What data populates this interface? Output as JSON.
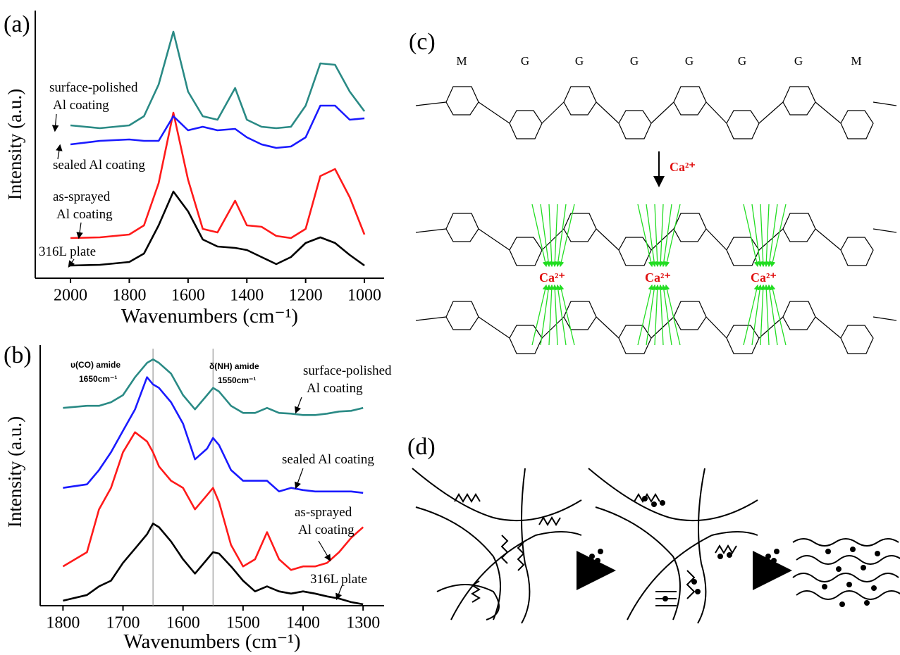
{
  "chart_data": [
    {
      "type": "line",
      "panel_label": "(a)",
      "y_label": "Intensity (a.u.)",
      "x_label": "Wavenumbers (cm⁻¹)",
      "x": [
        2000,
        1900,
        1800,
        1750,
        1700,
        1650,
        1600,
        1550,
        1500,
        1440,
        1400,
        1350,
        1300,
        1250,
        1200,
        1150,
        1100,
        1050,
        1000
      ],
      "xlim": [
        2120,
        933
      ],
      "xticks": [
        2000,
        1800,
        1600,
        1400,
        1200,
        1000
      ],
      "ylim": [
        0,
        380
      ],
      "series": [
        {
          "label_lines": [
            "316L plate"
          ],
          "color": "#000000",
          "values": [
            18,
            19,
            23,
            35,
            75,
            123,
            95,
            55,
            45,
            43,
            40,
            30,
            20,
            30,
            50,
            58,
            50,
            33,
            18
          ]
        },
        {
          "label_lines": [
            "as-sprayed",
            "Al coating"
          ],
          "color": "#ff1a1a",
          "values": [
            57,
            58,
            62,
            75,
            135,
            235,
            140,
            70,
            65,
            110,
            75,
            73,
            60,
            57,
            70,
            145,
            155,
            115,
            62
          ]
        },
        {
          "label_lines": [
            "sealed Al coating"
          ],
          "color": "#1a1aff",
          "values": [
            190,
            195,
            197,
            195,
            195,
            230,
            210,
            215,
            210,
            212,
            200,
            190,
            185,
            187,
            200,
            245,
            245,
            225,
            227
          ]
        },
        {
          "label_lines": [
            "surface-polished",
            "Al coating"
          ],
          "color": "#2a8a85",
          "values": [
            217,
            213,
            217,
            230,
            275,
            350,
            265,
            230,
            225,
            270,
            225,
            215,
            213,
            215,
            245,
            305,
            303,
            265,
            237
          ]
        }
      ]
    },
    {
      "type": "line",
      "panel_label": "(b)",
      "y_label": "Intensity (a.u.)",
      "x_label": "Wavenumbers (cm⁻¹)",
      "x": [
        1800,
        1760,
        1740,
        1720,
        1700,
        1680,
        1660,
        1650,
        1640,
        1620,
        1600,
        1580,
        1560,
        1550,
        1540,
        1520,
        1500,
        1480,
        1460,
        1440,
        1420,
        1400,
        1380,
        1360,
        1340,
        1320,
        1300
      ],
      "xlim": [
        1838,
        1265
      ],
      "xticks": [
        1800,
        1700,
        1600,
        1500,
        1400,
        1300
      ],
      "ylim": [
        0,
        365
      ],
      "reference_lines": [
        {
          "value": 1650,
          "label_lines": [
            "υ(CO) amide",
            "1650cm⁻¹"
          ]
        },
        {
          "value": 1550,
          "label_lines": [
            "δ(NH) amide",
            "1550cm⁻¹"
          ]
        }
      ],
      "series": [
        {
          "label_lines": [
            "316L plate"
          ],
          "color": "#000000",
          "values": [
            7,
            15,
            27,
            35,
            60,
            80,
            100,
            115,
            110,
            90,
            65,
            45,
            65,
            75,
            73,
            55,
            35,
            20,
            27,
            20,
            17,
            20,
            17,
            13,
            10,
            5,
            2
          ]
        },
        {
          "label_lines": [
            "as-sprayed",
            "Al coating"
          ],
          "color": "#ff1a1a",
          "values": [
            55,
            75,
            135,
            165,
            215,
            243,
            230,
            215,
            195,
            175,
            165,
            135,
            155,
            165,
            145,
            85,
            55,
            65,
            103,
            65,
            50,
            55,
            55,
            60,
            75,
            95,
            110
          ]
        },
        {
          "label_lines": [
            "sealed Al coating"
          ],
          "color": "#1a1aff",
          "values": [
            165,
            170,
            190,
            215,
            245,
            275,
            320,
            310,
            305,
            285,
            255,
            205,
            220,
            235,
            225,
            190,
            175,
            175,
            175,
            160,
            165,
            162,
            160,
            160,
            160,
            160,
            158
          ]
        },
        {
          "label_lines": [
            "surface-polished",
            "Al coating"
          ],
          "color": "#2a8a85",
          "values": [
            277,
            280,
            280,
            285,
            295,
            320,
            340,
            345,
            340,
            325,
            295,
            275,
            295,
            305,
            300,
            280,
            270,
            270,
            277,
            270,
            269,
            267,
            267,
            269,
            272,
            273,
            277
          ]
        }
      ]
    }
  ],
  "diagram_c": {
    "panel_label": "(c)",
    "residues": [
      "M",
      "G",
      "G",
      "G",
      "G",
      "G",
      "G",
      "M"
    ],
    "arrow_label": "Ca²⁺",
    "ion_labels": [
      "Ca²⁺",
      "Ca²⁺",
      "Ca²⁺"
    ]
  },
  "diagram_d": {
    "panel_label": "(d)"
  }
}
